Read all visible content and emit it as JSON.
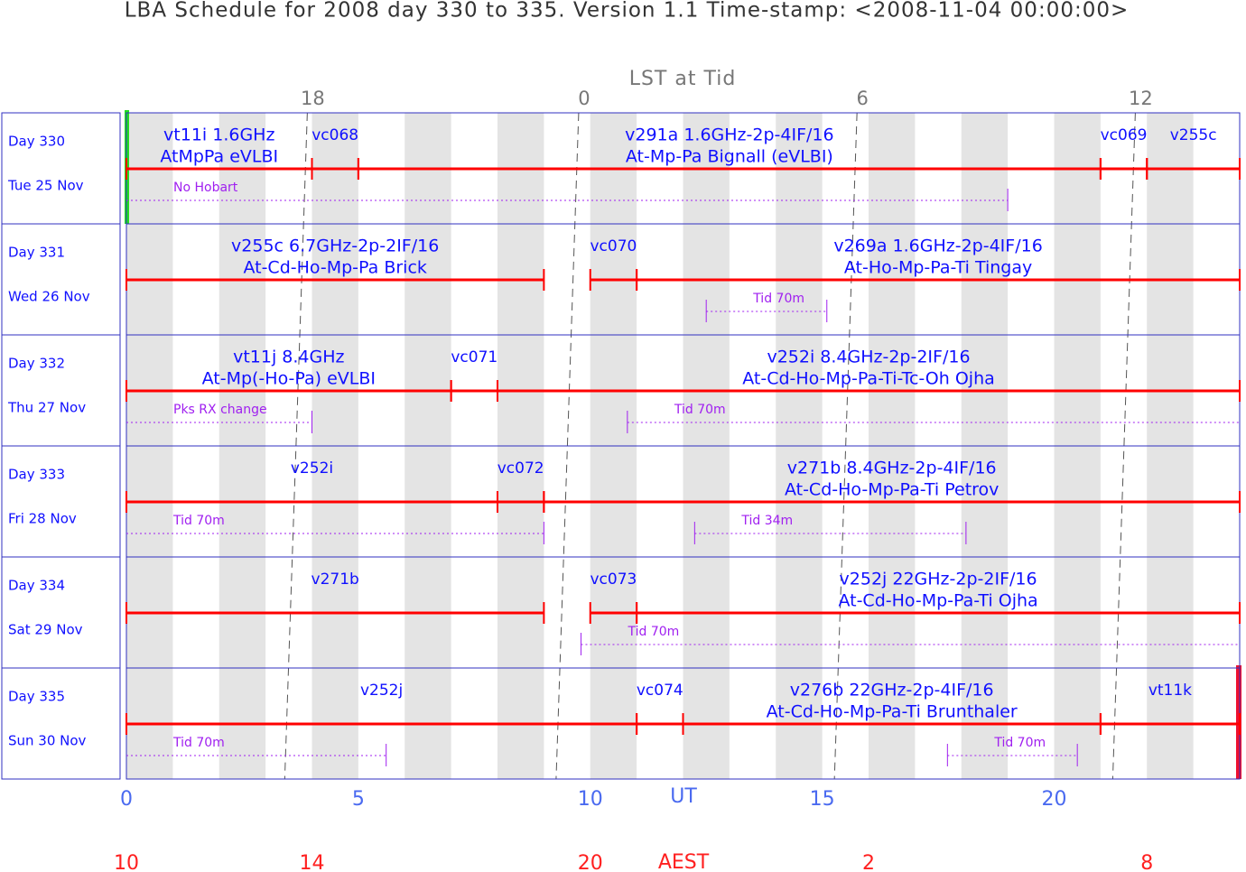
{
  "chart_data": {
    "type": "gantt",
    "title": "LBA Schedule for 2008 day 330 to 335. Version 1.1 Time-stamp: <2008-11-04 00:00:00>",
    "top_axis_label": "LST at Tid",
    "bottom_axis_label": "UT",
    "aest_axis_label": "AEST",
    "xlim": [
      0,
      24
    ],
    "xticks": [
      0,
      5,
      10,
      15,
      20
    ],
    "aest_ticks": [
      {
        "value": 0,
        "label": "10"
      },
      {
        "value": 4,
        "label": "14"
      },
      {
        "value": 10,
        "label": "20"
      },
      {
        "value": 16,
        "label": "2"
      },
      {
        "value": 22,
        "label": "8"
      }
    ],
    "lst_ticks": [
      {
        "value": 3.9,
        "label": "18"
      },
      {
        "value": 9.75,
        "label": "0"
      },
      {
        "value": 15.75,
        "label": "6"
      },
      {
        "value": 21.75,
        "label": "12"
      }
    ],
    "bar_color": "#ff0000",
    "text_color": "#1010ff",
    "note_color": "#a020f0",
    "days": [
      {
        "label": "Day 330",
        "date": "Tue 25 Nov",
        "experiments": [
          {
            "lines": [
              "vt11i 1.6GHz",
              "AtMpPa eVLBI"
            ],
            "start": 0,
            "end": 4
          },
          {
            "lines": [
              "vc068"
            ],
            "start": 4,
            "end": 5
          },
          {
            "lines": [
              "v291a 1.6GHz-2p-4IF/16",
              "At-Mp-Pa Bignall (eVLBI)"
            ],
            "start": 5,
            "end": 21
          },
          {
            "lines": [
              "vc069"
            ],
            "start": 21,
            "end": 22
          },
          {
            "lines": [
              "v255c"
            ],
            "start": 22,
            "end": 24
          }
        ],
        "notes": [
          {
            "label": "No Hobart",
            "start": 0,
            "end": 19
          }
        ]
      },
      {
        "label": "Day 331",
        "date": "Wed 26 Nov",
        "experiments": [
          {
            "lines": [
              "v255c 6.7GHz-2p-2IF/16",
              "At-Cd-Ho-Mp-Pa Brick"
            ],
            "start": 0,
            "end": 9
          },
          {
            "lines": [
              "vc070"
            ],
            "start": 10,
            "end": 11
          },
          {
            "lines": [
              "v269a 1.6GHz-2p-4IF/16",
              "At-Ho-Mp-Pa-Ti Tingay"
            ],
            "start": 11,
            "end": 24
          }
        ],
        "notes": [
          {
            "label": "Tid 70m",
            "start": 12.5,
            "end": 15.1
          }
        ]
      },
      {
        "label": "Day 332",
        "date": "Thu 27 Nov",
        "experiments": [
          {
            "lines": [
              "vt11j 8.4GHz",
              "At-Mp(-Ho-Pa) eVLBI"
            ],
            "start": 0,
            "end": 7
          },
          {
            "lines": [
              "vc071"
            ],
            "start": 7,
            "end": 8
          },
          {
            "lines": [
              "v252i 8.4GHz-2p-2IF/16",
              "At-Cd-Ho-Mp-Pa-Ti-Tc-Oh Ojha"
            ],
            "start": 8,
            "end": 24
          }
        ],
        "notes": [
          {
            "label": "Pks RX change",
            "start": 0,
            "end": 4
          },
          {
            "label": "Tid 70m",
            "start": 10.8,
            "end": 24
          }
        ]
      },
      {
        "label": "Day 333",
        "date": "Fri 28 Nov",
        "experiments": [
          {
            "lines": [
              "v252i"
            ],
            "start": 0,
            "end": 8
          },
          {
            "lines": [
              "vc072"
            ],
            "start": 8,
            "end": 9
          },
          {
            "lines": [
              "v271b 8.4GHz-2p-4IF/16",
              "At-Cd-Ho-Mp-Pa-Ti Petrov"
            ],
            "start": 9,
            "end": 24
          }
        ],
        "notes": [
          {
            "label": "Tid 70m",
            "start": 0,
            "end": 9
          },
          {
            "label": "Tid 34m",
            "start": 12.25,
            "end": 18.1
          }
        ]
      },
      {
        "label": "Day 334",
        "date": "Sat 29 Nov",
        "experiments": [
          {
            "lines": [
              "v271b"
            ],
            "start": 0,
            "end": 9
          },
          {
            "lines": [
              "vc073"
            ],
            "start": 10,
            "end": 11
          },
          {
            "lines": [
              "v252j 22GHz-2p-2IF/16",
              "At-Cd-Ho-Mp-Pa-Ti Ojha"
            ],
            "start": 11,
            "end": 24
          }
        ],
        "notes": [
          {
            "label": "Tid 70m",
            "start": 9.8,
            "end": 24
          }
        ]
      },
      {
        "label": "Day 335",
        "date": "Sun 30 Nov",
        "experiments": [
          {
            "lines": [
              "v252j"
            ],
            "start": 0,
            "end": 11
          },
          {
            "lines": [
              "vc074"
            ],
            "start": 11,
            "end": 12
          },
          {
            "lines": [
              "v276b 22GHz-2p-4IF/16",
              "At-Cd-Ho-Mp-Pa-Ti Brunthaler"
            ],
            "start": 12,
            "end": 21
          },
          {
            "lines": [
              "vt11k"
            ],
            "start": 21,
            "end": 24
          }
        ],
        "notes": [
          {
            "label": "Tid 70m",
            "start": 0,
            "end": 5.6
          },
          {
            "label": "Tid 70m",
            "start": 17.7,
            "end": 20.5
          }
        ]
      }
    ]
  }
}
